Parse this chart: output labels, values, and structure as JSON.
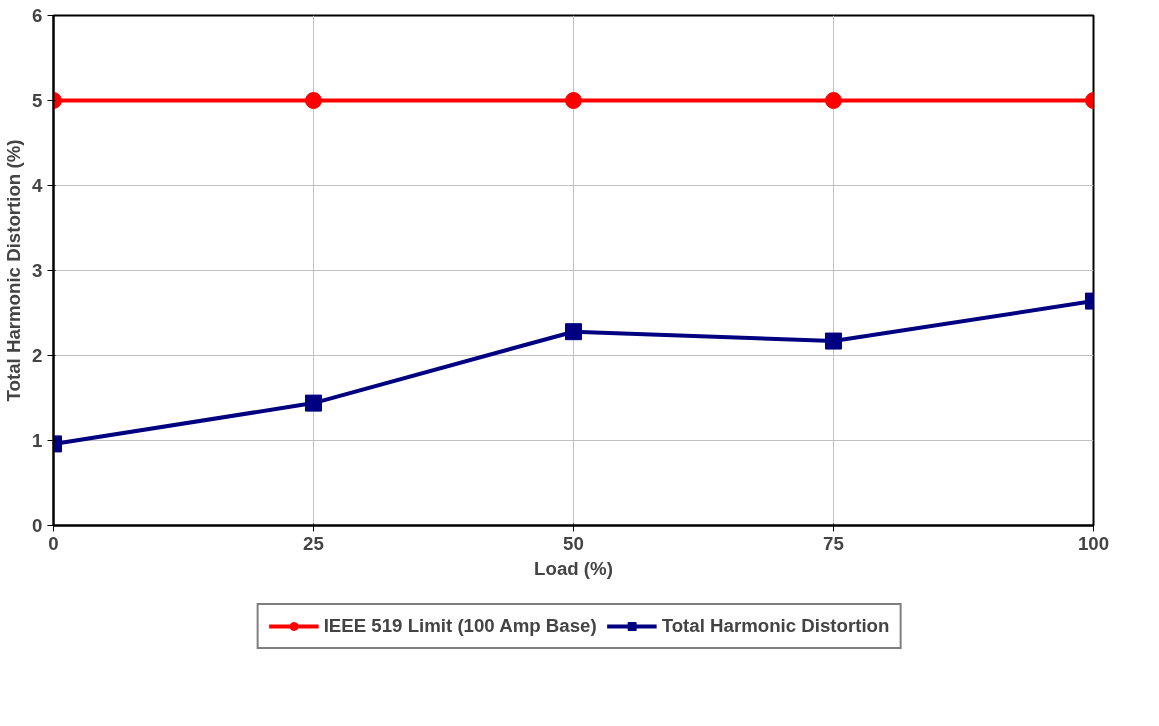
{
  "chart_data": {
    "type": "line",
    "xlabel": "Load (%)",
    "ylabel": "Total Harmonic Distortion (%)",
    "x": [
      0,
      25,
      50,
      75,
      100
    ],
    "series": [
      {
        "name": "IEEE 519 Limit (100 Amp Base)",
        "color": "#ff0000",
        "values": [
          5,
          5,
          5,
          5,
          5
        ],
        "marker": "circle"
      },
      {
        "name": "Total Harmonic Distortion",
        "color": "#000080",
        "values": [
          0.96,
          1.44,
          2.28,
          2.17,
          2.64
        ],
        "marker": "square"
      }
    ],
    "xlim": [
      0,
      100
    ],
    "ylim": [
      0,
      6
    ],
    "xticks": [
      0,
      25,
      50,
      75,
      100
    ],
    "yticks": [
      0,
      1,
      2,
      3,
      4,
      5,
      6
    ],
    "grid": true,
    "legend": "bottom",
    "line_style": "solid"
  }
}
